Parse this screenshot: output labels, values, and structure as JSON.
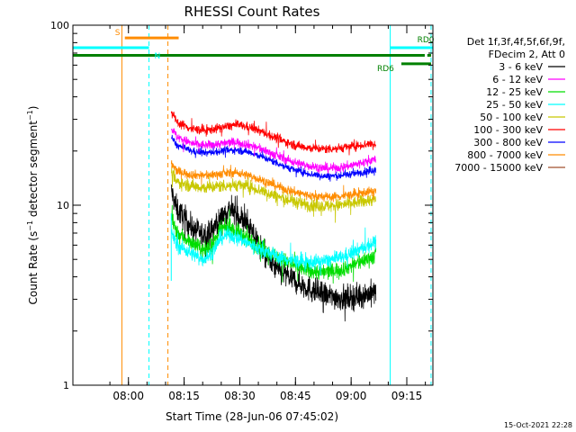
{
  "chart_data": {
    "type": "line",
    "title": "RHESSI Count Rates",
    "xlabel": "Start Time (28-Jun-06 07:45:02)",
    "ylabel_prefix": "Count Rate (s",
    "ylabel_sup1": "−1",
    "ylabel_mid": " detector segment",
    "ylabel_sup2": "−1",
    "ylabel_suffix": ")",
    "x_range_minutes": [
      0,
      97
    ],
    "y_scale": "log",
    "ylim": [
      1,
      100
    ],
    "y_ticks": [
      {
        "value": 1,
        "label": "1"
      },
      {
        "value": 10,
        "label": "10"
      },
      {
        "value": 100,
        "label": "100"
      }
    ],
    "x_ticks": [
      {
        "minute": 14.97,
        "label": "08:00"
      },
      {
        "minute": 29.97,
        "label": "08:15"
      },
      {
        "minute": 44.97,
        "label": "08:30"
      },
      {
        "minute": 59.97,
        "label": "08:45"
      },
      {
        "minute": 74.97,
        "label": "09:00"
      },
      {
        "minute": 89.97,
        "label": "09:15"
      }
    ],
    "legend_header": [
      "Det 1f,3f,4f,5f,6f,9f,",
      "FDecim 2, Att 0"
    ],
    "data_start_minute": 26.5,
    "data_end_minute": 81.7,
    "series": [
      {
        "name": "3 - 6 keV",
        "color": "#000000",
        "noise": 0.07,
        "points": [
          [
            26.5,
            12
          ],
          [
            28,
            9.5
          ],
          [
            30,
            8.5
          ],
          [
            32,
            7.5
          ],
          [
            35,
            6.8
          ],
          [
            37,
            7.0
          ],
          [
            40,
            8.5
          ],
          [
            42,
            9.5
          ],
          [
            44,
            9.0
          ],
          [
            46,
            8.2
          ],
          [
            48,
            7.2
          ],
          [
            50,
            6.2
          ],
          [
            52,
            5.2
          ],
          [
            55,
            4.4
          ],
          [
            58,
            4.0
          ],
          [
            61,
            3.7
          ],
          [
            64,
            3.4
          ],
          [
            67,
            3.2
          ],
          [
            70,
            3.1
          ],
          [
            73,
            3.05
          ],
          [
            76,
            3.1
          ],
          [
            79,
            3.2
          ],
          [
            81.7,
            3.3
          ]
        ]
      },
      {
        "name": "6 - 12 keV",
        "color": "#ff00ff",
        "noise": 0.025,
        "points": [
          [
            26.5,
            27
          ],
          [
            28,
            24
          ],
          [
            32,
            22
          ],
          [
            36,
            21.5
          ],
          [
            40,
            22
          ],
          [
            44,
            22.5
          ],
          [
            48,
            21.5
          ],
          [
            52,
            20
          ],
          [
            56,
            18.5
          ],
          [
            60,
            17.2
          ],
          [
            64,
            16.5
          ],
          [
            68,
            16
          ],
          [
            72,
            16.2
          ],
          [
            76,
            16.8
          ],
          [
            79,
            17.5
          ],
          [
            81.7,
            18
          ]
        ]
      },
      {
        "name": "12 - 25 keV",
        "color": "#00dd00",
        "noise": 0.045,
        "points": [
          [
            26.5,
            8.5
          ],
          [
            28,
            7.0
          ],
          [
            32,
            6.2
          ],
          [
            35,
            5.6
          ],
          [
            37,
            5.8
          ],
          [
            40,
            7.3
          ],
          [
            42,
            7.6
          ],
          [
            45,
            7.0
          ],
          [
            48,
            6.3
          ],
          [
            52,
            5.6
          ],
          [
            56,
            5.0
          ],
          [
            60,
            4.6
          ],
          [
            64,
            4.3
          ],
          [
            68,
            4.25
          ],
          [
            72,
            4.4
          ],
          [
            76,
            4.7
          ],
          [
            79,
            5.0
          ],
          [
            81.7,
            5.3
          ]
        ]
      },
      {
        "name": "25 - 50 keV",
        "color": "#00ffff",
        "noise": 0.04,
        "points": [
          [
            26.5,
            7.2
          ],
          [
            28,
            6.0
          ],
          [
            32,
            5.4
          ],
          [
            35,
            5.0
          ],
          [
            37,
            5.3
          ],
          [
            40,
            6.6
          ],
          [
            42,
            6.9
          ],
          [
            45,
            6.5
          ],
          [
            48,
            6.0
          ],
          [
            52,
            5.5
          ],
          [
            56,
            5.1
          ],
          [
            60,
            4.9
          ],
          [
            64,
            4.8
          ],
          [
            68,
            4.9
          ],
          [
            72,
            5.1
          ],
          [
            76,
            5.5
          ],
          [
            79,
            5.9
          ],
          [
            81.7,
            6.3
          ]
        ]
      },
      {
        "name": "50 - 100 keV",
        "color": "#c8c800",
        "noise": 0.035,
        "points": [
          [
            26.5,
            15
          ],
          [
            28,
            13.5
          ],
          [
            32,
            12.8
          ],
          [
            36,
            12.5
          ],
          [
            40,
            12.8
          ],
          [
            44,
            13.0
          ],
          [
            48,
            12.6
          ],
          [
            52,
            11.8
          ],
          [
            56,
            11.0
          ],
          [
            60,
            10.4
          ],
          [
            64,
            10.0
          ],
          [
            68,
            9.9
          ],
          [
            72,
            10.0
          ],
          [
            76,
            10.3
          ],
          [
            79,
            10.6
          ],
          [
            81.7,
            10.8
          ]
        ]
      },
      {
        "name": "100 - 300 keV",
        "color": "#ff0000",
        "noise": 0.025,
        "points": [
          [
            26.5,
            33
          ],
          [
            28,
            29
          ],
          [
            32,
            26.5
          ],
          [
            36,
            26
          ],
          [
            40,
            27
          ],
          [
            44,
            28
          ],
          [
            48,
            27
          ],
          [
            52,
            25
          ],
          [
            56,
            23
          ],
          [
            60,
            21.5
          ],
          [
            64,
            20.8
          ],
          [
            68,
            20.5
          ],
          [
            72,
            20.8
          ],
          [
            76,
            21.3
          ],
          [
            79,
            21.8
          ],
          [
            81.7,
            22
          ]
        ]
      },
      {
        "name": "300 - 800 keV",
        "color": "#0000ff",
        "noise": 0.02,
        "points": [
          [
            26.5,
            24
          ],
          [
            28,
            21.5
          ],
          [
            32,
            20
          ],
          [
            36,
            19.5
          ],
          [
            40,
            20
          ],
          [
            44,
            20.3
          ],
          [
            48,
            19.6
          ],
          [
            52,
            18.2
          ],
          [
            56,
            16.8
          ],
          [
            60,
            15.6
          ],
          [
            64,
            14.9
          ],
          [
            68,
            14.5
          ],
          [
            72,
            14.6
          ],
          [
            76,
            15.0
          ],
          [
            79,
            15.4
          ],
          [
            81.7,
            15.8
          ]
        ]
      },
      {
        "name": "800 - 7000 keV",
        "color": "#ff8c00",
        "noise": 0.025,
        "points": [
          [
            26.5,
            17
          ],
          [
            28,
            15.5
          ],
          [
            32,
            14.8
          ],
          [
            36,
            14.6
          ],
          [
            40,
            15
          ],
          [
            44,
            15.2
          ],
          [
            48,
            14.5
          ],
          [
            52,
            13.5
          ],
          [
            56,
            12.5
          ],
          [
            60,
            11.8
          ],
          [
            64,
            11.3
          ],
          [
            68,
            11.1
          ],
          [
            72,
            11.2
          ],
          [
            76,
            11.5
          ],
          [
            79,
            11.8
          ],
          [
            81.7,
            12
          ]
        ]
      },
      {
        "name": "7000 - 15000 keV",
        "color": "#a0522d",
        "noise": 0.03,
        "points": []
      }
    ],
    "flags": [
      {
        "label": "S",
        "color": "#ff8c00",
        "start_minute": 14.0,
        "end_minute": 28.5,
        "level": 85
      },
      {
        "label": "N",
        "color": "#00ffff",
        "start_minute": 0,
        "end_minute": 20.5,
        "level": 75
      },
      {
        "label": "RD0",
        "color": "#00ffff",
        "start_minute": 85.5,
        "end_minute": 97,
        "level": 75
      },
      {
        "label": "RD6",
        "color": "#008000",
        "start_minute": 88.5,
        "end_minute": 96.5,
        "level": 61
      }
    ],
    "green_line_level": 68,
    "green_line_end_minute": 94.8,
    "green_tail_start_minute": 95.5,
    "vertical_markers": [
      {
        "minute": 13.2,
        "color": "#ff8c00",
        "dashed": false
      },
      {
        "minute": 20.5,
        "color": "#00ffff",
        "dashed": true
      },
      {
        "minute": 25.6,
        "color": "#ff8c00",
        "dashed": true
      },
      {
        "minute": 85.5,
        "color": "#00ffff",
        "dashed": false
      },
      {
        "minute": 96.5,
        "color": "#00ffff",
        "dashed": true
      }
    ],
    "footer_timestamp": "15-Oct-2021 22:28"
  }
}
